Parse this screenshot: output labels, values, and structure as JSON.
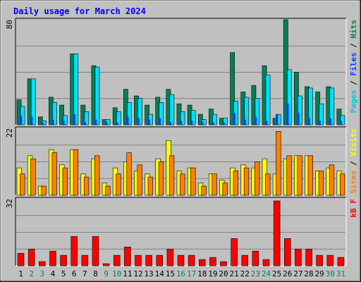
{
  "chart_data": {
    "type": "bar",
    "title": "Daily usage for March 2024",
    "categories": [
      "1",
      "2",
      "3",
      "4",
      "5",
      "6",
      "7",
      "8",
      "9",
      "10",
      "11",
      "12",
      "13",
      "14",
      "15",
      "16",
      "17",
      "18",
      "19",
      "20",
      "21",
      "22",
      "23",
      "24",
      "25",
      "26",
      "27",
      "28",
      "29",
      "30",
      "31"
    ],
    "weekend_days": [
      2,
      3,
      9,
      10,
      16,
      17,
      23,
      24,
      30,
      31
    ],
    "panels": [
      {
        "name": "hits-files-pages",
        "ymax_label": "80",
        "ymax": 80,
        "right_label_parts": [
          {
            "text": "Pages",
            "color": "#00c8e0"
          },
          {
            "text": " / ",
            "color": "#000000"
          },
          {
            "text": "Files",
            "color": "#0040ff"
          },
          {
            "text": " / ",
            "color": "#000000"
          },
          {
            "text": "Hits",
            "color": "#008040"
          }
        ],
        "series": [
          {
            "name": "Hits",
            "color": "#00805a",
            "values": [
              19,
              35,
              6,
              21,
              15,
              54,
              15,
              45,
              4,
              13,
              27,
              22,
              15,
              21,
              27,
              16,
              15,
              8,
              12,
              5,
              55,
              25,
              30,
              45,
              5,
              80,
              40,
              29,
              25,
              29,
              12
            ]
          },
          {
            "name": "Files",
            "color": "#0040ff",
            "values": [
              7,
              6,
              2,
              4,
              3,
              8,
              2,
              4,
              2,
              2,
              6,
              5,
              4,
              5,
              2,
              3,
              3,
              2,
              2,
              2,
              9,
              4,
              6,
              3,
              8,
              16,
              9,
              5,
              3,
              5,
              3
            ]
          },
          {
            "name": "Pages",
            "color": "#00e0ff",
            "values": [
              14,
              35,
              3,
              17,
              7,
              54,
              10,
              44,
              4,
              10,
              17,
              20,
              8,
              17,
              23,
              10,
              11,
              4,
              8,
              5,
              18,
              21,
              20,
              38,
              8,
              42,
              22,
              28,
              16,
              28,
              7
            ]
          }
        ]
      },
      {
        "name": "visits-sites",
        "ymax_label": "22",
        "ymax": 22,
        "right_label_parts": [
          {
            "text": "Sites",
            "color": "#ff8000"
          },
          {
            "text": " / ",
            "color": "#000000"
          },
          {
            "text": "Visits",
            "color": "#ffff00"
          }
        ],
        "series": [
          {
            "name": "Visits",
            "color": "#ffff00",
            "values": [
              9,
              13,
              3,
              15,
              10,
              15,
              7,
              12,
              4,
              9,
              11,
              8,
              7,
              12,
              18,
              8,
              9,
              4,
              7,
              5,
              9,
              10,
              9,
              12,
              7,
              12,
              13,
              13,
              8,
              9,
              8
            ]
          },
          {
            "name": "Sites",
            "color": "#ff8000",
            "values": [
              7,
              12,
              3,
              14,
              9,
              15,
              6,
              13,
              3,
              7,
              14,
              10,
              6,
              11,
              13,
              7,
              9,
              3,
              7,
              4,
              8,
              9,
              11,
              7,
              21,
              13,
              13,
              13,
              8,
              10,
              7
            ]
          }
        ]
      },
      {
        "name": "kbytes",
        "ymax_label": "32",
        "ymax": 32,
        "right_label_parts": [
          {
            "text": "kB F",
            "color": "#ff0000"
          }
        ],
        "series": [
          {
            "name": "kB F",
            "color": "#ff0000",
            "values": [
              6,
              8,
              2,
              7,
              5,
              14,
              5,
              14,
              1,
              5,
              9,
              5,
              5,
              5,
              8,
              5,
              5,
              3,
              4,
              2,
              13,
              5,
              7,
              3,
              31,
              13,
              8,
              8,
              5,
              5,
              4
            ]
          }
        ]
      }
    ],
    "colors": {
      "background": "#c0c0c0",
      "grid": "#808080",
      "title": "#0000ff",
      "weekday_label": "#000000",
      "weekend_label": "#00805a"
    }
  }
}
